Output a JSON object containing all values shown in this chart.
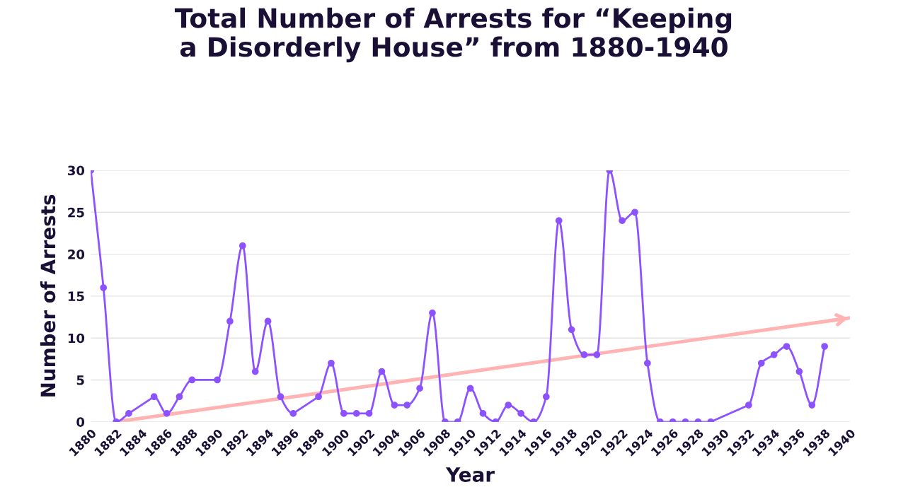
{
  "chart_data": {
    "type": "line",
    "title": "Total Number of Arrests for “Keeping\na Disorderly House” from 1880-1940",
    "xlabel": "Year",
    "ylabel": "Number of Arrests",
    "series": [
      {
        "color": "#8c52ff",
        "x": [
          1880,
          1881,
          1882,
          1883,
          1885,
          1886,
          1887,
          1888,
          1890,
          1891,
          1892,
          1893,
          1894,
          1895,
          1896,
          1898,
          1899,
          1900,
          1901,
          1902,
          1903,
          1904,
          1905,
          1906,
          1907,
          1908,
          1909,
          1910,
          1911,
          1912,
          1913,
          1914,
          1915,
          1916,
          1917,
          1918,
          1919,
          1920,
          1921,
          1922,
          1923,
          1924,
          1925,
          1926,
          1927,
          1928,
          1929,
          1932,
          1933,
          1934,
          1935,
          1936,
          1937,
          1938
        ],
        "values": [
          30,
          16,
          0,
          1,
          3,
          1,
          3,
          5,
          5,
          12,
          21,
          6,
          12,
          3,
          1,
          3,
          7,
          1,
          1,
          1,
          6,
          2,
          2,
          4,
          13,
          0,
          0,
          4,
          1,
          0,
          2,
          1,
          0,
          3,
          24,
          11,
          8,
          8,
          30,
          24,
          25,
          7,
          0,
          0,
          0,
          0,
          0,
          2,
          7,
          8,
          9,
          6,
          2,
          9
        ],
        "marker": "circle"
      },
      {
        "type": "line",
        "color": "#ffb3b3",
        "x": [
          1882,
          1940
        ],
        "values": [
          0,
          12.4
        ],
        "marker": "none"
      }
    ],
    "xlim": [
      1880,
      1940
    ],
    "xticks": [
      1880,
      1882,
      1884,
      1886,
      1888,
      1890,
      1892,
      1894,
      1896,
      1898,
      1900,
      1902,
      1904,
      1906,
      1908,
      1910,
      1912,
      1914,
      1916,
      1918,
      1920,
      1922,
      1924,
      1926,
      1928,
      1930,
      1932,
      1934,
      1936,
      1938,
      1940
    ],
    "ylim": [
      0,
      30
    ],
    "yticks": [
      0,
      5,
      10,
      15,
      20,
      25,
      30
    ],
    "grid": "y",
    "line_style": "solid"
  }
}
